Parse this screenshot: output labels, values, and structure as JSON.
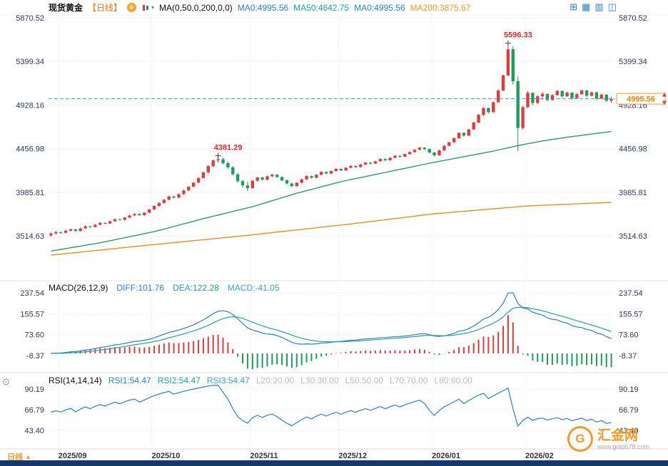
{
  "header": {
    "symbol": "现货黄金",
    "period_tag": "【日线】",
    "link_icon_glyph": "⊕",
    "dropdown_glyph": "▾",
    "ma_formula": "MA(0,50,0,200,0,0)",
    "ma_values": [
      "MA0:4995.56",
      "MA50:4642.75",
      "MA0:4995.56",
      "MA200:3875.67"
    ],
    "toolbar": [
      "⊞",
      "▦",
      "▥",
      "◫"
    ]
  },
  "macd_header": {
    "params": "MACD(26,12,9)",
    "diff": "DIFF:101.76",
    "dea": "DEA:122.28",
    "macd": "MACD:-41.05"
  },
  "rsi_header": {
    "params": "RSI(14,14,14)",
    "values": [
      "RSI1:54.47",
      "RSI2:54.47",
      "RSI3:54.47"
    ],
    "levels": [
      "L20:20.00",
      "L30:30.00",
      "L50:50.00",
      "L70:70.00",
      "L80:80.00"
    ]
  },
  "left_icon_glyph": "⊙",
  "footer": {
    "period_tab": "日线",
    "arrow": "▲"
  },
  "logo": {
    "monogram": "G",
    "name": "汇金网",
    "site": "www.gold678.com"
  },
  "colors": {
    "up": "#e23b3b",
    "down": "#18a05a",
    "ma50": "#2e9e62",
    "ma200": "#f08c1e",
    "diff": "#2b7fd4",
    "dea": "#21a39b",
    "accent": "#f59a23",
    "price_line": "#4a90d9",
    "annotation": "#e02b2b",
    "axis_text": "#2b3a5c",
    "date_text": "#333333",
    "grid": "#dcdcdc",
    "navy_bar": "#14386e"
  },
  "chart_data": {
    "type": "candlestick",
    "title": "现货黄金 日线",
    "current_price": 4995.56,
    "y_axis": {
      "values": [
        5870.52,
        5399.34,
        4928.16,
        4456.98,
        3985.81,
        3514.63
      ]
    },
    "x_axis": {
      "labels": [
        "2025/09",
        "2025/10",
        "2025/11",
        "2025/12",
        "2026/01",
        "2026/02"
      ],
      "bar_index": [
        2,
        21,
        41,
        59,
        78,
        97
      ]
    },
    "annotations": [
      {
        "label": "5596.33",
        "bar": 93,
        "price": 5596.33
      },
      {
        "label": "4381.29",
        "bar": 34,
        "price": 4381.29
      }
    ],
    "ma50": {
      "name": "MA50",
      "points": [
        [
          0,
          3350
        ],
        [
          10,
          3440
        ],
        [
          21,
          3560
        ],
        [
          31,
          3700
        ],
        [
          41,
          3830
        ],
        [
          50,
          3975
        ],
        [
          59,
          4100
        ],
        [
          68,
          4200
        ],
        [
          78,
          4310
        ],
        [
          85,
          4380
        ],
        [
          90,
          4430
        ],
        [
          95,
          4490
        ],
        [
          100,
          4540
        ],
        [
          105,
          4580
        ],
        [
          110,
          4615
        ],
        [
          114,
          4642.75
        ]
      ]
    },
    "ma200": {
      "name": "MA200",
      "points": [
        [
          0,
          3307
        ],
        [
          20,
          3415
        ],
        [
          40,
          3520
        ],
        [
          60,
          3637
        ],
        [
          78,
          3753
        ],
        [
          97,
          3838
        ],
        [
          114,
          3875.67
        ]
      ]
    },
    "macd": {
      "y_labels": [
        237.54,
        155.57,
        73.6,
        -8.37
      ]
    },
    "rsi": {
      "y_labels": [
        90.19,
        66.79,
        43.4
      ]
    },
    "candles": [
      [
        3520,
        3552,
        3505,
        3540
      ],
      [
        3540,
        3568,
        3532,
        3555
      ],
      [
        3555,
        3562,
        3535,
        3548
      ],
      [
        3548,
        3582,
        3544,
        3570
      ],
      [
        3570,
        3596,
        3562,
        3585
      ],
      [
        3585,
        3590,
        3558,
        3568
      ],
      [
        3568,
        3605,
        3560,
        3595
      ],
      [
        3595,
        3628,
        3590,
        3618
      ],
      [
        3618,
        3625,
        3600,
        3610
      ],
      [
        3610,
        3642,
        3605,
        3635
      ],
      [
        3635,
        3665,
        3628,
        3655
      ],
      [
        3655,
        3662,
        3638,
        3648
      ],
      [
        3648,
        3680,
        3642,
        3672
      ],
      [
        3672,
        3702,
        3665,
        3695
      ],
      [
        3695,
        3700,
        3678,
        3688
      ],
      [
        3688,
        3720,
        3682,
        3712
      ],
      [
        3712,
        3742,
        3706,
        3735
      ],
      [
        3735,
        3758,
        3728,
        3750
      ],
      [
        3750,
        3756,
        3730,
        3738
      ],
      [
        3738,
        3772,
        3732,
        3765
      ],
      [
        3765,
        3808,
        3760,
        3800
      ],
      [
        3800,
        3845,
        3795,
        3838
      ],
      [
        3838,
        3878,
        3830,
        3870
      ],
      [
        3870,
        3912,
        3862,
        3905
      ],
      [
        3905,
        3948,
        3898,
        3940
      ],
      [
        3940,
        3946,
        3915,
        3928
      ],
      [
        3928,
        3972,
        3922,
        3965
      ],
      [
        3965,
        4012,
        3958,
        4005
      ],
      [
        4005,
        4052,
        3998,
        4045
      ],
      [
        4045,
        4098,
        4040,
        4090
      ],
      [
        4090,
        4148,
        4082,
        4140
      ],
      [
        4140,
        4210,
        4132,
        4200
      ],
      [
        4200,
        4278,
        4192,
        4268
      ],
      [
        4268,
        4340,
        4258,
        4330
      ],
      [
        4330,
        4381.29,
        4305,
        4342
      ],
      [
        4342,
        4360,
        4288,
        4300
      ],
      [
        4300,
        4318,
        4240,
        4255
      ],
      [
        4255,
        4268,
        4165,
        4180
      ],
      [
        4180,
        4195,
        4088,
        4105
      ],
      [
        4105,
        4120,
        4035,
        4060
      ],
      [
        4060,
        4102,
        3998,
        4030
      ],
      [
        4030,
        4118,
        4025,
        4110
      ],
      [
        4110,
        4150,
        4098,
        4145
      ],
      [
        4145,
        4152,
        4112,
        4122
      ],
      [
        4122,
        4165,
        4115,
        4158
      ],
      [
        4158,
        4182,
        4148,
        4176
      ],
      [
        4176,
        4180,
        4142,
        4150
      ],
      [
        4150,
        4158,
        4105,
        4115
      ],
      [
        4115,
        4122,
        4068,
        4080
      ],
      [
        4080,
        4090,
        4040,
        4052
      ],
      [
        4052,
        4095,
        4046,
        4088
      ],
      [
        4088,
        4132,
        4082,
        4125
      ],
      [
        4125,
        4168,
        4118,
        4160
      ],
      [
        4160,
        4166,
        4135,
        4142
      ],
      [
        4142,
        4182,
        4136,
        4175
      ],
      [
        4175,
        4212,
        4168,
        4205
      ],
      [
        4205,
        4210,
        4178,
        4188
      ],
      [
        4188,
        4222,
        4182,
        4215
      ],
      [
        4215,
        4245,
        4208,
        4238
      ],
      [
        4238,
        4242,
        4215,
        4222
      ],
      [
        4222,
        4258,
        4216,
        4250
      ],
      [
        4250,
        4278,
        4244,
        4270
      ],
      [
        4270,
        4275,
        4248,
        4258
      ],
      [
        4258,
        4292,
        4252,
        4285
      ],
      [
        4285,
        4312,
        4278,
        4306
      ],
      [
        4306,
        4310,
        4285,
        4295
      ],
      [
        4295,
        4328,
        4290,
        4320
      ],
      [
        4320,
        4352,
        4315,
        4345
      ],
      [
        4345,
        4350,
        4322,
        4332
      ],
      [
        4332,
        4365,
        4326,
        4358
      ],
      [
        4358,
        4388,
        4352,
        4380
      ],
      [
        4380,
        4385,
        4360,
        4370
      ],
      [
        4370,
        4405,
        4365,
        4398
      ],
      [
        4398,
        4428,
        4392,
        4420
      ],
      [
        4420,
        4452,
        4415,
        4445
      ],
      [
        4445,
        4475,
        4438,
        4468
      ],
      [
        4468,
        4472,
        4440,
        4452
      ],
      [
        4452,
        4458,
        4405,
        4415
      ],
      [
        4415,
        4422,
        4372,
        4385
      ],
      [
        4385,
        4445,
        4380,
        4438
      ],
      [
        4438,
        4495,
        4432,
        4488
      ],
      [
        4488,
        4532,
        4480,
        4525
      ],
      [
        4525,
        4578,
        4518,
        4570
      ],
      [
        4570,
        4635,
        4562,
        4628
      ],
      [
        4628,
        4632,
        4585,
        4598
      ],
      [
        4598,
        4672,
        4592,
        4665
      ],
      [
        4665,
        4748,
        4658,
        4740
      ],
      [
        4740,
        4832,
        4732,
        4822
      ],
      [
        4822,
        4905,
        4812,
        4895
      ],
      [
        4895,
        4900,
        4835,
        4852
      ],
      [
        4852,
        4968,
        4845,
        4958
      ],
      [
        4958,
        5095,
        4950,
        5085
      ],
      [
        5085,
        5260,
        5078,
        5248
      ],
      [
        5248,
        5596.33,
        5240,
        5530
      ],
      [
        5530,
        5565,
        5150,
        5185
      ],
      [
        5185,
        5235,
        4430,
        4680
      ],
      [
        4680,
        4920,
        4665,
        4905
      ],
      [
        4905,
        5080,
        4895,
        5060
      ],
      [
        5060,
        5065,
        4925,
        4950
      ],
      [
        4950,
        5035,
        4940,
        5022
      ],
      [
        5022,
        5068,
        4985,
        5048
      ],
      [
        5048,
        5052,
        4968,
        4982
      ],
      [
        4982,
        5045,
        4975,
        5035
      ],
      [
        5035,
        5092,
        5028,
        5080
      ],
      [
        5080,
        5085,
        5008,
        5022
      ],
      [
        5022,
        5072,
        5015,
        5062
      ],
      [
        5062,
        5066,
        4988,
        5002
      ],
      [
        5002,
        5058,
        4995,
        5045
      ],
      [
        5045,
        5095,
        5038,
        5085
      ],
      [
        5085,
        5090,
        5012,
        5028
      ],
      [
        5028,
        5075,
        5020,
        5065
      ],
      [
        5065,
        5070,
        4985,
        4998
      ],
      [
        4998,
        5052,
        4990,
        5040
      ],
      [
        5040,
        5045,
        4962,
        4975
      ],
      [
        4975,
        5020,
        4952,
        4995.56
      ]
    ]
  }
}
